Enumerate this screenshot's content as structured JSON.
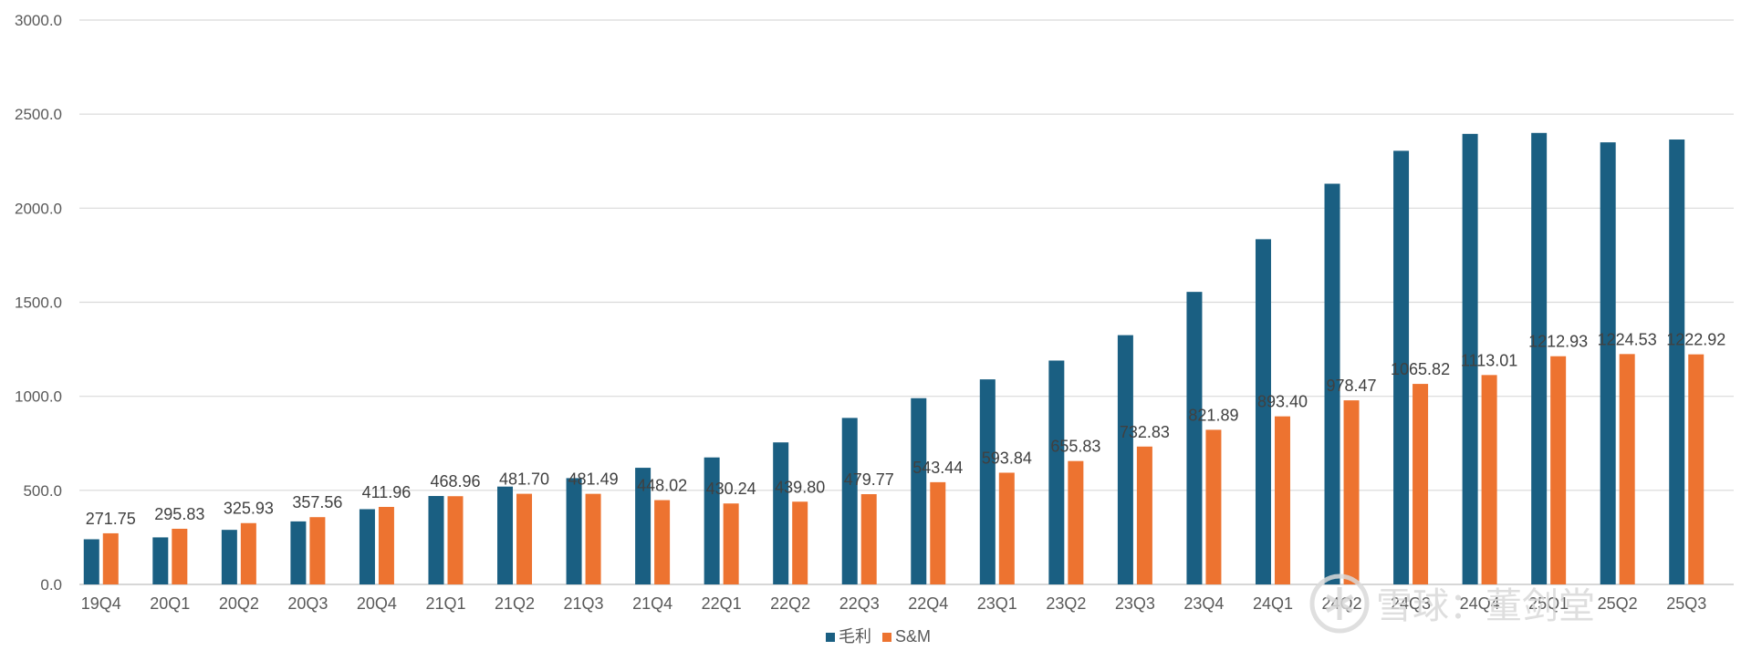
{
  "chart_data": {
    "type": "bar",
    "title": "",
    "xlabel": "",
    "ylabel": "",
    "ylim": [
      0,
      3000
    ],
    "yticks": [
      "0.0",
      "500.0",
      "1000.0",
      "1500.0",
      "2000.0",
      "2500.0",
      "3000.0"
    ],
    "grid": true,
    "legend_position": "bottom",
    "categories": [
      "19Q4",
      "20Q1",
      "20Q2",
      "20Q3",
      "20Q4",
      "21Q1",
      "21Q2",
      "21Q3",
      "21Q4",
      "22Q1",
      "22Q2",
      "22Q3",
      "22Q4",
      "23Q1",
      "23Q2",
      "23Q3",
      "23Q4",
      "24Q1",
      "24Q2",
      "24Q3",
      "24Q4",
      "25Q1",
      "25Q2",
      "25Q3"
    ],
    "series": [
      {
        "name": "毛利",
        "color": "#1a5f82",
        "values": [
          240,
          250,
          290,
          335,
          400,
          470,
          520,
          565,
          620,
          675,
          755,
          885,
          990,
          1090,
          1190,
          1325,
          1555,
          1835,
          2130,
          2305,
          2395,
          2400,
          2350,
          2365
        ]
      },
      {
        "name": "S&M",
        "color": "#ed7330",
        "values": [
          271.75,
          295.83,
          325.93,
          357.56,
          411.96,
          468.96,
          481.7,
          481.49,
          448.02,
          430.24,
          439.8,
          479.77,
          543.44,
          593.84,
          655.83,
          732.83,
          821.89,
          893.4,
          978.47,
          1065.82,
          1113.01,
          1212.93,
          1224.53,
          1222.92
        ],
        "data_labels": [
          "271.75",
          "295.83",
          "325.93",
          "357.56",
          "411.96",
          "468.96",
          "481.70",
          "481.49",
          "448.02",
          "430.24",
          "439.80",
          "479.77",
          "543.44",
          "593.84",
          "655.83",
          "732.83",
          "821.89",
          "893.40",
          "978.47",
          "1065.82",
          "1113.01",
          "1212.93",
          "1224.53",
          "1222.92"
        ]
      }
    ]
  },
  "watermark": {
    "text": "雪球：董剑堂",
    "icon": "snowball-logo-icon"
  }
}
